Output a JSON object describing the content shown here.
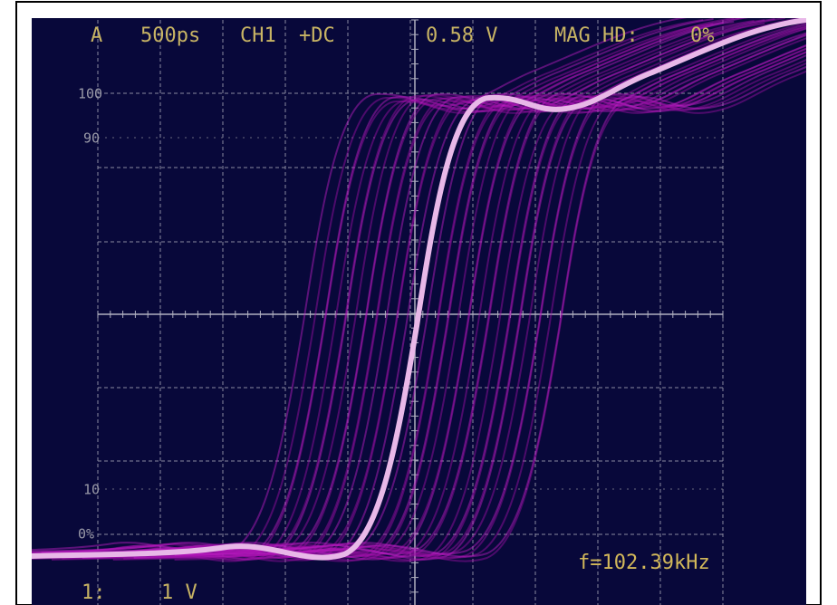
{
  "header": {
    "trigger": "A",
    "timebase": "500ps",
    "channel": "CH1",
    "coupling": "+DC",
    "level": "0.58 V",
    "mode": "MAG HD:",
    "percent": "0%"
  },
  "scale_labels": [
    "100",
    "90",
    "10",
    "0%"
  ],
  "frequency": "f=102.39kHz",
  "footer": {
    "channel": "1:",
    "scale": "1 V"
  }
}
